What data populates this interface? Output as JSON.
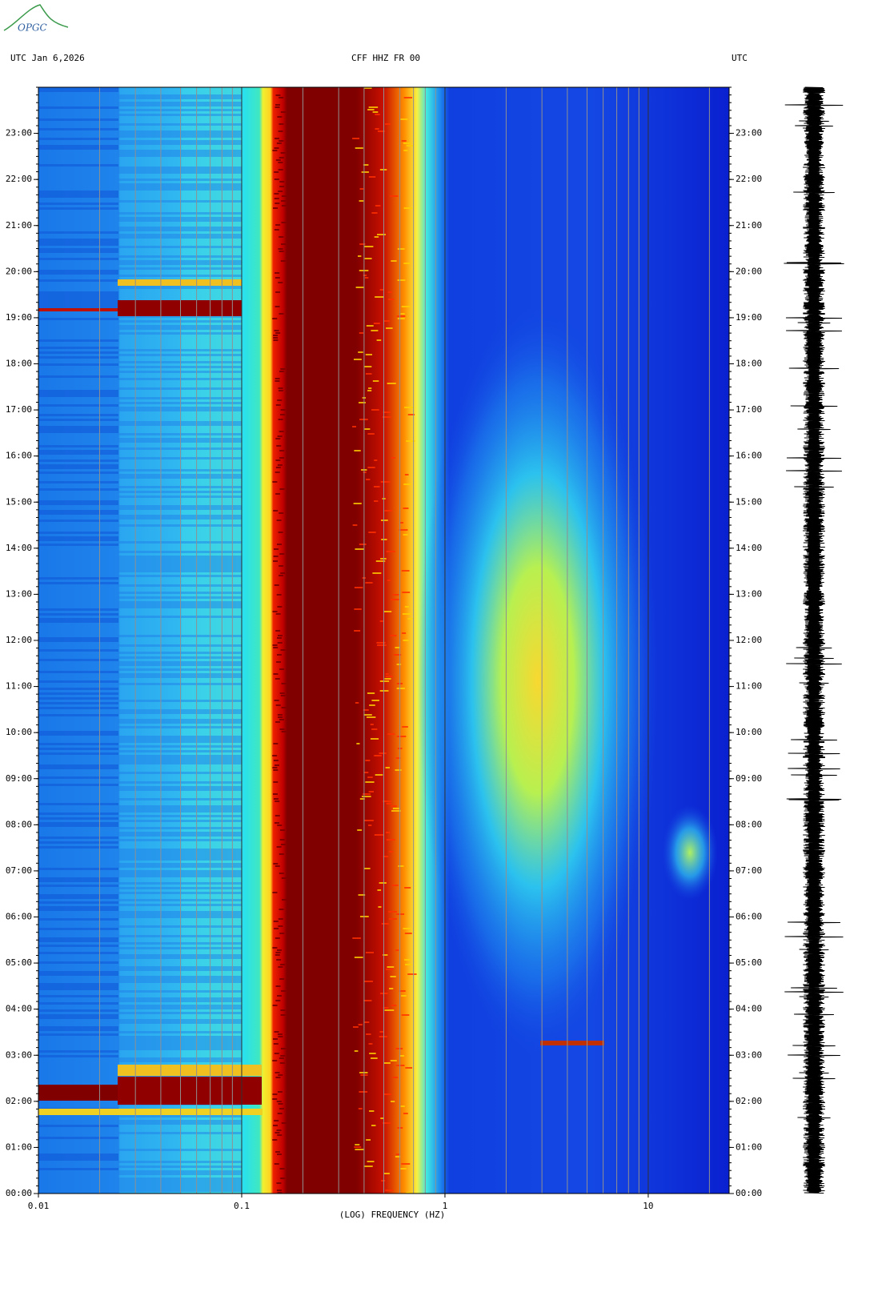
{
  "logo": "OPGC",
  "chart_data": {
    "type": "spectrogram",
    "title_left": "UTC  Jan 6,2026",
    "title": "CFF HHZ FR 00",
    "title_right": "UTC",
    "xlabel": "(LOG) FREQUENCY (HZ)",
    "xscale": "log",
    "xlim": [
      0.01,
      25
    ],
    "xticks": [
      0.01,
      0.1,
      1,
      10
    ],
    "xminor": [
      0.02,
      0.03,
      0.04,
      0.05,
      0.06,
      0.07,
      0.08,
      0.09,
      0.2,
      0.3,
      0.4,
      0.5,
      0.6,
      0.7,
      0.8,
      0.9,
      2,
      3,
      4,
      5,
      6,
      7,
      8,
      9,
      20
    ],
    "ylim": [
      0,
      24
    ],
    "yticks": [
      {
        "value": 0,
        "label": "00:00"
      },
      {
        "value": 1,
        "label": "01:00"
      },
      {
        "value": 2,
        "label": "02:00"
      },
      {
        "value": 3,
        "label": "03:00"
      },
      {
        "value": 4,
        "label": "04:00"
      },
      {
        "value": 5,
        "label": "05:00"
      },
      {
        "value": 6,
        "label": "06:00"
      },
      {
        "value": 7,
        "label": "07:00"
      },
      {
        "value": 8,
        "label": "08:00"
      },
      {
        "value": 9,
        "label": "09:00"
      },
      {
        "value": 10,
        "label": "10:00"
      },
      {
        "value": 11,
        "label": "11:00"
      },
      {
        "value": 12,
        "label": "12:00"
      },
      {
        "value": 13,
        "label": "13:00"
      },
      {
        "value": 14,
        "label": "14:00"
      },
      {
        "value": 15,
        "label": "15:00"
      },
      {
        "value": 16,
        "label": "16:00"
      },
      {
        "value": 17,
        "label": "17:00"
      },
      {
        "value": 18,
        "label": "18:00"
      },
      {
        "value": 19,
        "label": "19:00"
      },
      {
        "value": 20,
        "label": "20:00"
      },
      {
        "value": 21,
        "label": "21:00"
      },
      {
        "value": 22,
        "label": "22:00"
      },
      {
        "value": 23,
        "label": "23:00"
      }
    ]
  }
}
